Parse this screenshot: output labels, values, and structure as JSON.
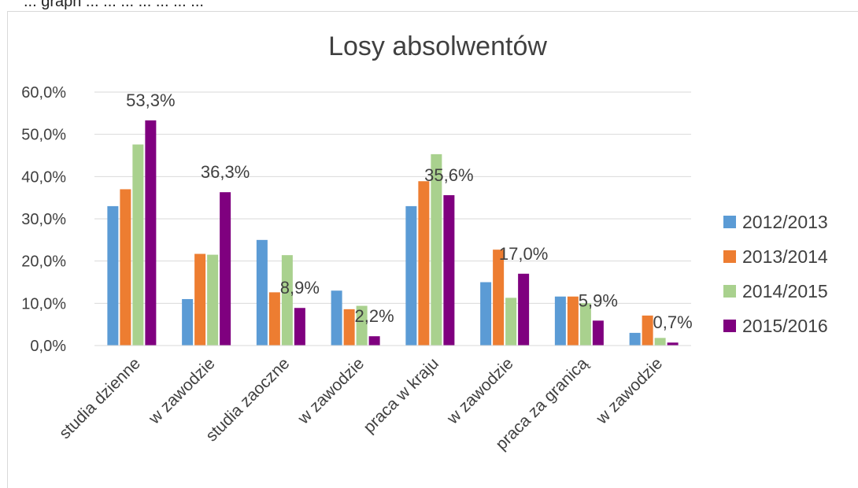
{
  "top_caption": "... graph ... ... ... ... ... ... ...",
  "chart_data": {
    "type": "bar",
    "title": "Losy absolwentów",
    "categories": [
      "studia dzienne",
      "w zawodzie",
      "studia zaoczne",
      "w zawodzie",
      "praca w kraju",
      "w zawodzie",
      "praca za granicą",
      "w zawodzie"
    ],
    "series": [
      {
        "name": "2012/2013",
        "color": "#5b9bd5",
        "values": [
          33.0,
          11.0,
          25.0,
          13.0,
          33.0,
          15.0,
          11.6,
          3.0
        ]
      },
      {
        "name": "2013/2014",
        "color": "#ed7d31",
        "values": [
          37.0,
          21.7,
          12.6,
          8.6,
          38.9,
          22.7,
          11.6,
          7.1
        ]
      },
      {
        "name": "2014/2015",
        "color": "#a9d18e",
        "values": [
          47.6,
          21.5,
          21.4,
          9.4,
          45.3,
          11.3,
          10.0,
          1.8
        ]
      },
      {
        "name": "2015/2016",
        "color": "#7f007f",
        "values": [
          53.3,
          36.3,
          8.9,
          2.2,
          35.6,
          17.0,
          5.9,
          0.7
        ]
      }
    ],
    "data_labels": [
      "53,3%",
      "36,3%",
      "8,9%",
      "2,2%",
      "35,6%",
      "17,0%",
      "5,9%",
      "0,7%"
    ],
    "y_ticks": [
      "0,0%",
      "10,0%",
      "20,0%",
      "30,0%",
      "40,0%",
      "50,0%",
      "60,0%"
    ],
    "ylim": [
      0,
      60
    ],
    "grid": true,
    "legend": "right"
  }
}
